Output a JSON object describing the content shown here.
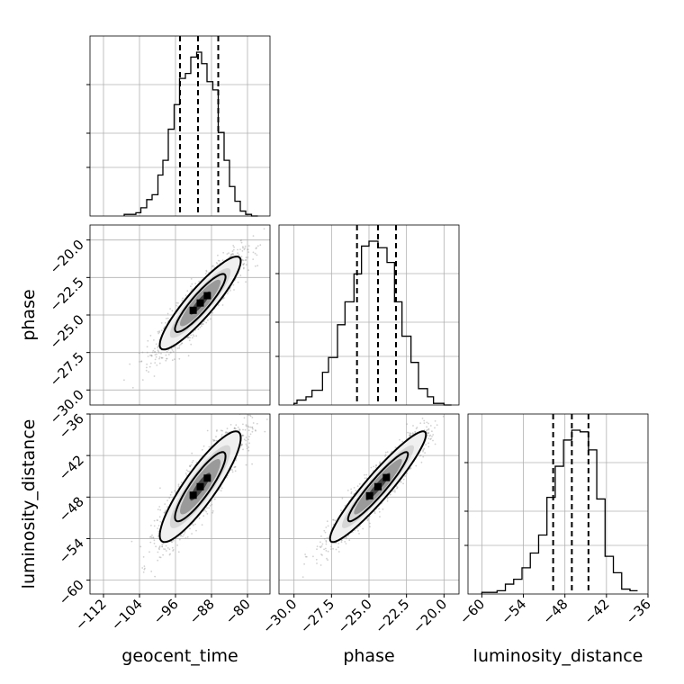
{
  "chart_data": {
    "type": "corner",
    "parameters": [
      "geocent_time",
      "phase",
      "luminosity_distance"
    ],
    "ranges": {
      "geocent_time": [
        -115,
        -75
      ],
      "phase": [
        -31,
        -19
      ],
      "luminosity_distance": [
        -62,
        -36
      ]
    },
    "ticks": {
      "geocent_time": {
        "values": [
          -112,
          -104,
          -96,
          -88,
          -80
        ],
        "labels": [
          "−112",
          "−104",
          "−96",
          "−88",
          "−80"
        ]
      },
      "phase": {
        "values": [
          -30,
          -27.5,
          -25,
          -22.5,
          -20
        ],
        "labels": [
          "−30.0",
          "−27.5",
          "−25.0",
          "−22.5",
          "−20.0"
        ]
      },
      "luminosity_distance": {
        "values": [
          -60,
          -54,
          -48,
          -42,
          -36
        ],
        "labels": [
          "−60",
          "−54",
          "−48",
          "−42",
          "−36"
        ]
      }
    },
    "quantile_lines": {
      "geocent_time": [
        -95,
        -91,
        -86.5
      ],
      "phase": [
        -25.8,
        -24.4,
        -23.2
      ],
      "luminosity_distance": [
        -49.7,
        -47,
        -44.6
      ]
    },
    "histograms": {
      "geocent_time": {
        "bin_edges": [
          -107.4,
          -104.8,
          -103.7,
          -102.4,
          -101.2,
          -99.9,
          -98.8,
          -97.6,
          -96.3,
          -95.1,
          -93.8,
          -92.6,
          -91.3,
          -90.2,
          -89.0,
          -87.7,
          -86.5,
          -85.2,
          -84.0,
          -82.8,
          -81.6,
          -80.4,
          -79.1,
          -77.7
        ],
        "counts": [
          1,
          2,
          5,
          10,
          13,
          25,
          34,
          53,
          68,
          84,
          87,
          97,
          100,
          93,
          82,
          77,
          51,
          34,
          18,
          9,
          3,
          1,
          0
        ]
      },
      "phase": {
        "bin_edges": [
          -30.0,
          -29.8,
          -29.2,
          -28.8,
          -28.1,
          -27.7,
          -27.1,
          -26.6,
          -26.0,
          -25.5,
          -25.0,
          -24.4,
          -23.8,
          -23.3,
          -22.8,
          -22.2,
          -21.7,
          -21.1,
          -20.7,
          -20.0,
          -19.5
        ],
        "counts": [
          1,
          3,
          5,
          9,
          20,
          29,
          49,
          63,
          80,
          97,
          100,
          96,
          87,
          63,
          42,
          26,
          10,
          5,
          1,
          0
        ]
      },
      "luminosity_distance": {
        "bin_edges": [
          -60.0,
          -57.8,
          -56.6,
          -55.4,
          -54.2,
          -53.0,
          -51.8,
          -50.6,
          -49.4,
          -48.2,
          -47.0,
          -45.8,
          -44.6,
          -43.4,
          -42.2,
          -41.0,
          -39.8,
          -38.6,
          -37.5
        ],
        "counts": [
          1,
          2,
          6,
          9,
          16,
          25,
          36,
          59,
          78,
          94,
          100,
          99,
          88,
          58,
          23,
          13,
          3,
          2
        ]
      }
    },
    "pairs": [
      {
        "x": "geocent_time",
        "y": "phase",
        "center": [
          -90.5,
          -24.2
        ],
        "sigma": [
          4.5,
          1.55
        ],
        "rho": 0.9
      },
      {
        "x": "geocent_time",
        "y": "luminosity_distance",
        "center": [
          -90.5,
          -46.5
        ],
        "sigma": [
          4.5,
          4.0
        ],
        "rho": 0.88
      },
      {
        "x": "phase",
        "y": "luminosity_distance",
        "center": [
          -24.4,
          -46.5
        ],
        "sigma": [
          1.6,
          4.0
        ],
        "rho": 0.94
      }
    ],
    "xlabel": [
      "geocent_time",
      "phase",
      "luminosity_distance"
    ],
    "ylabel": [
      "",
      "phase",
      "luminosity_distance"
    ],
    "grid": true,
    "line_color": "#000000",
    "scatter_color": "#999999"
  }
}
